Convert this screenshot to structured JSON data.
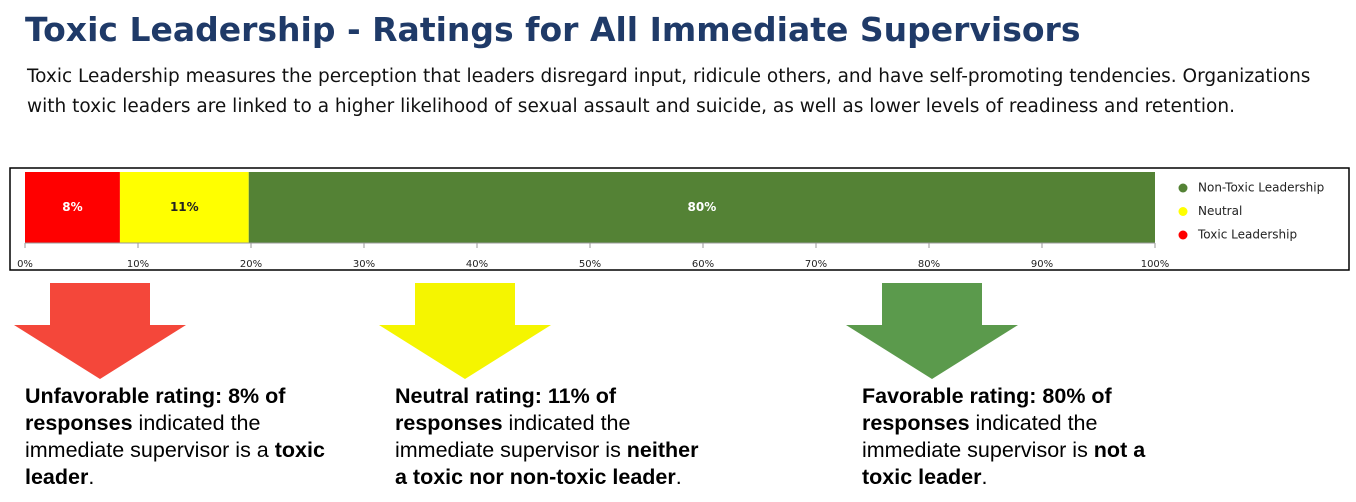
{
  "chart_data": {
    "type": "stacked_bar_horizontal",
    "title": "Toxic Leadership - Ratings for All Immediate Supervisors",
    "subtitle": "Toxic Leadership measures the perception that leaders disregard input, ridicule others, and have self-promoting tendencies. Organizations with toxic leaders are linked to a higher likelihood of sexual assault and suicide, as well as lower levels of readiness and retention.",
    "series": [
      {
        "name": "Toxic Leadership",
        "color": "#ff0000",
        "values": [
          8.4
        ],
        "value_labels": [
          "8%"
        ]
      },
      {
        "name": "Neutral",
        "color": "#ffff00",
        "values": [
          11.4
        ],
        "value_labels": [
          "11%"
        ]
      },
      {
        "name": "Non-Toxic Leadership",
        "color": "#548235",
        "values": [
          80.2
        ],
        "value_labels": [
          "80%"
        ]
      }
    ],
    "xlim": [
      0,
      100
    ],
    "xticks": [
      {
        "value": 0,
        "label": "0%"
      },
      {
        "value": 10,
        "label": "10%"
      },
      {
        "value": 20,
        "label": "20%"
      },
      {
        "value": 30,
        "label": "30%"
      },
      {
        "value": 40,
        "label": "40%"
      },
      {
        "value": 50,
        "label": "50%"
      },
      {
        "value": 60,
        "label": "60%"
      },
      {
        "value": 70,
        "label": "70%"
      },
      {
        "value": 80,
        "label": "80%"
      },
      {
        "value": 90,
        "label": "90%"
      },
      {
        "value": 100,
        "label": "100%"
      }
    ],
    "legend": "right",
    "annotations": [
      {
        "color": "#f4473a",
        "parts": [
          {
            "text": "Unfavorable rating: 8% of responses",
            "bold": true
          },
          {
            "text": " indicated the immediate supervisor is a ",
            "bold": false
          },
          {
            "text": "toxic leader",
            "bold": true
          },
          {
            "text": ".",
            "bold": false
          }
        ]
      },
      {
        "color": "#f5f500",
        "parts": [
          {
            "text": "Neutral rating: 11% of responses",
            "bold": true
          },
          {
            "text": " indicated the immediate supervisor is ",
            "bold": false
          },
          {
            "text": "neither a toxic nor non-toxic leader",
            "bold": true
          },
          {
            "text": ".",
            "bold": false
          }
        ]
      },
      {
        "color": "#5b9a4c",
        "parts": [
          {
            "text": "Favorable rating: 80% of responses",
            "bold": true
          },
          {
            "text": " indicated the immediate supervisor is ",
            "bold": false
          },
          {
            "text": "not a toxic leader",
            "bold": true
          },
          {
            "text": ".",
            "bold": false
          }
        ]
      }
    ]
  }
}
